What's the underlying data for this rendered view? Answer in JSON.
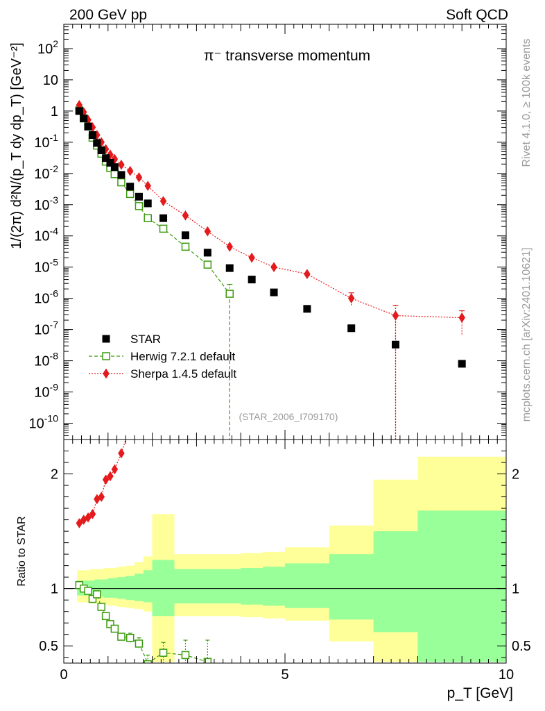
{
  "header": {
    "left": "200 GeV pp",
    "right": "Soft QCD"
  },
  "side_labels": {
    "rivet": "Rivet 4.1.0, ≥ 100k events",
    "mcplots": "mcplots.cern.ch [arXiv:2401.10621]"
  },
  "colors": {
    "star": "#000000",
    "herwig": "#3c9a0e",
    "sherpa": "#e41a1c",
    "band_outer": "#ffff99",
    "band_inner": "#99ff99"
  },
  "chart_data": [
    {
      "type": "scatter",
      "title": "π⁻ transverse momentum",
      "analysis_tag": "(STAR_2006_I709170)",
      "xlabel": "p_T [GeV]",
      "ylabel": "1/(2π) d²N/(p_T dy dp_T) [GeV⁻²]",
      "yscale": "log",
      "xlim": [
        0,
        10
      ],
      "ylim": [
        3e-11,
        600
      ],
      "y_tick_labels": [
        "10^-10",
        "10^-9",
        "10^-8",
        "10^-7",
        "10^-6",
        "10^-5",
        "10^-4",
        "10^-3",
        "10^-2",
        "10^-1",
        "1",
        "10",
        "10^2"
      ],
      "legend": [
        {
          "key": "star",
          "label": "STAR"
        },
        {
          "key": "herwig",
          "label": "Herwig 7.2.1 default"
        },
        {
          "key": "sherpa",
          "label": "Sherpa 1.4.5 default"
        }
      ],
      "series": {
        "star": {
          "name": "STAR",
          "x": [
            0.35,
            0.45,
            0.55,
            0.65,
            0.75,
            0.85,
            0.95,
            1.05,
            1.15,
            1.3,
            1.5,
            1.7,
            1.9,
            2.25,
            2.75,
            3.25,
            3.75,
            4.25,
            4.75,
            5.5,
            6.5,
            7.5,
            9.0
          ],
          "y": [
            1.0,
            0.58,
            0.32,
            0.17,
            0.095,
            0.055,
            0.031,
            0.022,
            0.016,
            0.009,
            0.0038,
            0.0018,
            0.0011,
            0.00037,
            0.000105,
            2.9e-05,
            9.3e-06,
            4e-06,
            1.55e-06,
            4.6e-07,
            1.1e-07,
            3.3e-08,
            8e-09
          ]
        },
        "herwig": {
          "name": "Herwig 7.2.1 default",
          "x": [
            0.35,
            0.45,
            0.55,
            0.65,
            0.75,
            0.85,
            0.95,
            1.05,
            1.15,
            1.3,
            1.5,
            1.7,
            1.9,
            2.25,
            2.75,
            3.25,
            3.75
          ],
          "y": [
            1.05,
            0.58,
            0.32,
            0.14,
            0.078,
            0.043,
            0.024,
            0.015,
            0.0095,
            0.0052,
            0.0022,
            0.0009,
            0.00037,
            0.00017,
            4.5e-05,
            1.2e-05,
            1.4e-06
          ],
          "dropoff_x": [
            3.75,
            3.75
          ],
          "dropoff_y": [
            1.4e-06,
            3e-11
          ]
        },
        "sherpa": {
          "name": "Sherpa 1.4.5 default",
          "x": [
            0.35,
            0.45,
            0.55,
            0.65,
            0.75,
            0.85,
            0.95,
            1.05,
            1.15,
            1.3,
            1.5,
            1.7,
            1.9,
            2.25,
            2.75,
            3.25,
            3.75,
            4.25,
            4.75,
            5.5,
            6.5,
            7.5,
            9.0
          ],
          "y": [
            1.55,
            0.92,
            0.52,
            0.3,
            0.17,
            0.1,
            0.06,
            0.04,
            0.029,
            0.019,
            0.012,
            0.0075,
            0.004,
            0.0013,
            0.00045,
            0.00014,
            4.5e-05,
            2e-05,
            1e-05,
            6e-06,
            1e-06,
            2.8e-07,
            2.4e-07
          ],
          "dropoff_x": [
            7.5,
            7.5
          ],
          "dropoff_y": [
            2.8e-07,
            3e-11
          ]
        }
      }
    },
    {
      "type": "line",
      "title": "Ratio panel",
      "ylabel": "Ratio to STAR",
      "xlabel": "p_T [GeV]",
      "xlim": [
        0,
        10
      ],
      "ylim": [
        0.35,
        2.3
      ],
      "x_tick_labels": [
        "0",
        "5",
        "10"
      ],
      "y_tick_labels": [
        "0.5",
        "1",
        "2"
      ],
      "bands": {
        "edges": [
          0.3,
          0.4,
          0.5,
          0.6,
          0.7,
          0.8,
          0.9,
          1.0,
          1.1,
          1.2,
          1.4,
          1.6,
          1.8,
          2.0,
          2.5,
          3.0,
          3.5,
          4.0,
          4.5,
          5.0,
          6.0,
          7.0,
          8.0,
          10.0
        ],
        "outer_lo": [
          0.88,
          0.88,
          0.88,
          0.87,
          0.87,
          0.86,
          0.86,
          0.85,
          0.85,
          0.84,
          0.83,
          0.82,
          0.8,
          0.36,
          0.76,
          0.76,
          0.76,
          0.75,
          0.74,
          0.72,
          0.54,
          0.36,
          0.36
        ],
        "outer_hi": [
          1.16,
          1.16,
          1.16,
          1.17,
          1.17,
          1.17,
          1.18,
          1.18,
          1.18,
          1.19,
          1.2,
          1.23,
          1.28,
          1.65,
          1.3,
          1.3,
          1.3,
          1.31,
          1.32,
          1.36,
          1.55,
          1.95,
          2.15
        ],
        "inner_lo": [
          0.94,
          0.94,
          0.94,
          0.93,
          0.93,
          0.93,
          0.92,
          0.92,
          0.92,
          0.91,
          0.9,
          0.89,
          0.88,
          0.76,
          0.87,
          0.87,
          0.87,
          0.86,
          0.85,
          0.83,
          0.73,
          0.62,
          0.36
        ],
        "inner_hi": [
          1.07,
          1.07,
          1.07,
          1.07,
          1.08,
          1.08,
          1.08,
          1.09,
          1.09,
          1.1,
          1.11,
          1.13,
          1.16,
          1.25,
          1.17,
          1.17,
          1.17,
          1.18,
          1.19,
          1.22,
          1.3,
          1.5,
          1.68
        ]
      },
      "series": {
        "herwig": {
          "name": "Herwig 7.2.1 default",
          "x": [
            0.35,
            0.45,
            0.55,
            0.65,
            0.75,
            0.85,
            0.95,
            1.05,
            1.15,
            1.3,
            1.5,
            1.7,
            1.9,
            2.25,
            2.75,
            3.25
          ],
          "y": [
            1.03,
            1.0,
            0.98,
            0.91,
            0.95,
            0.84,
            0.76,
            0.69,
            0.65,
            0.58,
            0.57,
            0.52,
            0.34,
            0.44,
            0.42,
            0.36
          ],
          "err": [
            0.02,
            0.02,
            0.02,
            0.02,
            0.02,
            0.02,
            0.02,
            0.02,
            0.03,
            0.03,
            0.04,
            0.05,
            0.08,
            0.09,
            0.13,
            0.19
          ]
        },
        "sherpa": {
          "name": "Sherpa 1.4.5 default",
          "x": [
            0.35,
            0.45,
            0.55,
            0.65,
            0.75,
            0.85,
            0.95,
            1.05,
            1.15,
            1.3,
            1.4
          ],
          "y": [
            1.57,
            1.6,
            1.62,
            1.65,
            1.78,
            1.8,
            1.95,
            1.98,
            2.04,
            2.18,
            2.35
          ]
        }
      }
    }
  ]
}
